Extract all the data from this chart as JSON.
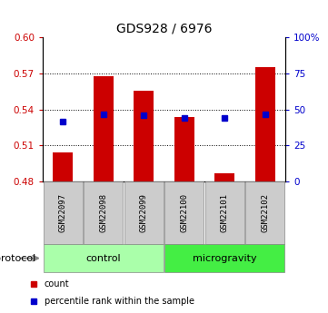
{
  "title": "GDS928 / 6976",
  "samples": [
    "GSM22097",
    "GSM22098",
    "GSM22099",
    "GSM22100",
    "GSM22101",
    "GSM22102"
  ],
  "bar_bottoms": [
    0.48,
    0.48,
    0.48,
    0.48,
    0.48,
    0.48
  ],
  "bar_tops": [
    0.504,
    0.568,
    0.556,
    0.534,
    0.487,
    0.575
  ],
  "bar_color": "#cc0000",
  "percentile_values": [
    0.53,
    0.536,
    0.535,
    0.533,
    0.533,
    0.536
  ],
  "blue_marker_color": "#0000cc",
  "ylim_left": [
    0.48,
    0.6
  ],
  "ylim_right": [
    0,
    100
  ],
  "yticks_left": [
    0.48,
    0.51,
    0.54,
    0.57,
    0.6
  ],
  "yticks_right": [
    0,
    25,
    50,
    75,
    100
  ],
  "ytick_labels_right": [
    "0",
    "25",
    "50",
    "75",
    "100%"
  ],
  "dotted_lines": [
    0.51,
    0.54,
    0.57
  ],
  "protocol_groups": [
    {
      "label": "control",
      "indices": [
        0,
        1,
        2
      ],
      "color": "#aaffaa"
    },
    {
      "label": "microgravity",
      "indices": [
        3,
        4,
        5
      ],
      "color": "#44ee44"
    }
  ],
  "protocol_label": "protocol",
  "legend_items": [
    {
      "label": "count",
      "color": "#cc0000"
    },
    {
      "label": "percentile rank within the sample",
      "color": "#0000cc"
    }
  ],
  "bar_width": 0.5,
  "background_color": "#ffffff",
  "plot_bg_color": "#ffffff",
  "left_tick_color": "#cc0000",
  "right_tick_color": "#0000cc",
  "gray_color": "#cccccc",
  "sample_font_size": 6.5,
  "title_fontsize": 10
}
